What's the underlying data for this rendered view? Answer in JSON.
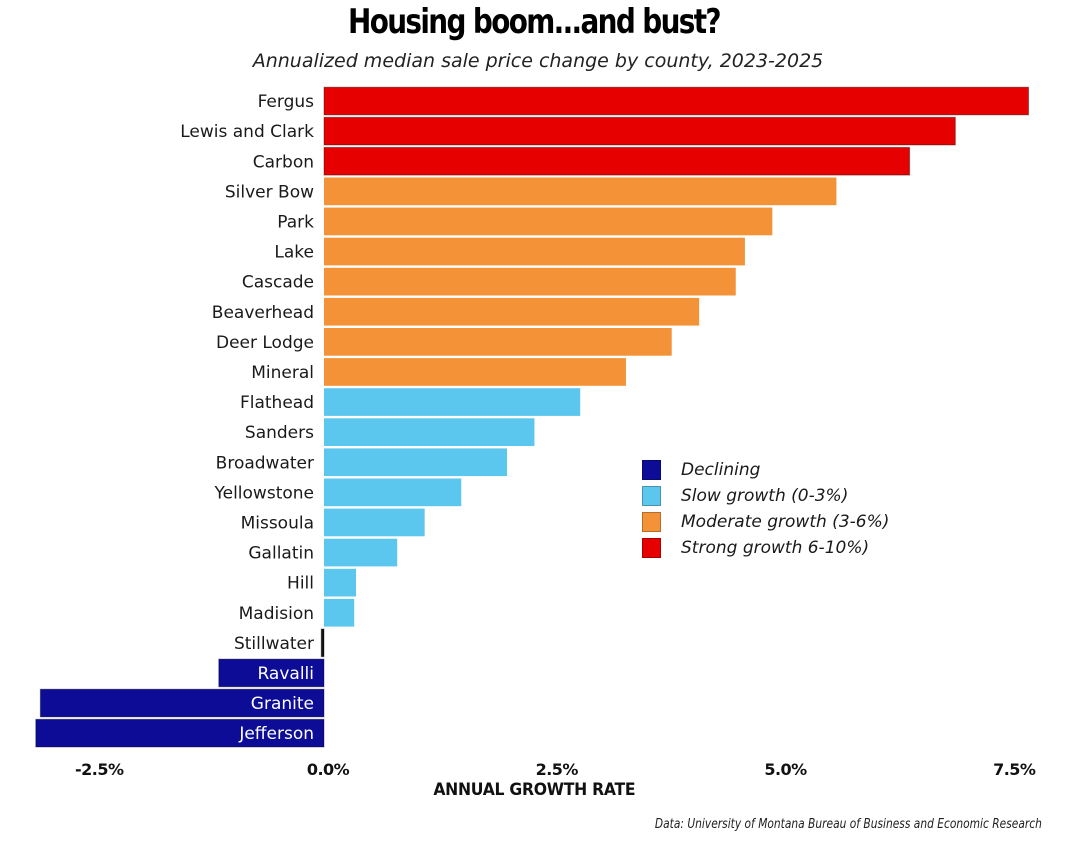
{
  "chart_data": {
    "type": "bar",
    "orientation": "horizontal",
    "title": "Housing boom...and bust?",
    "subtitle": "Annualized median sale price change by county, 2023-2025",
    "xlabel": "ANNUAL GROWTH RATE",
    "ylabel": "",
    "source": "Data: University of Montana Bureau of Business and Economic Research",
    "xlim": [
      -3.2,
      7.75
    ],
    "x_ticks": [
      -2.5,
      0.0,
      2.5,
      5.0,
      7.5
    ],
    "x_tick_labels": [
      "-2.5%",
      "0.0%",
      "2.5%",
      "5.0%",
      "7.5%"
    ],
    "grid": false,
    "legend_position": "center-right",
    "legend": [
      {
        "key": "declining",
        "label": "Declining",
        "color": "#0c0c96"
      },
      {
        "key": "slow",
        "label": "Slow growth (0-3%)",
        "color": "#5bc6ee"
      },
      {
        "key": "moderate",
        "label": "Moderate growth (3-6%)",
        "color": "#f39237"
      },
      {
        "key": "strong",
        "label": "Strong growth 6-10%)",
        "color": "#e60000"
      }
    ],
    "categories": [
      "Fergus",
      "Lewis and Clark",
      "Carbon",
      "Silver Bow",
      "Park",
      "Lake",
      "Cascade",
      "Beaverhead",
      "Deer Lodge",
      "Mineral",
      "Flathead",
      "Sanders",
      "Broadwater",
      "Yellowstone",
      "Missoula",
      "Gallatin",
      "Hill",
      "Madision",
      "Stillwater",
      "Ravalli",
      "Granite",
      "Jefferson"
    ],
    "values": [
      7.7,
      6.9,
      6.4,
      5.6,
      4.9,
      4.6,
      4.5,
      4.1,
      3.8,
      3.3,
      2.8,
      2.3,
      2.0,
      1.5,
      1.1,
      0.8,
      0.35,
      0.33,
      -0.03,
      -1.15,
      -3.1,
      -3.15
    ],
    "groups": [
      "strong",
      "strong",
      "strong",
      "moderate",
      "moderate",
      "moderate",
      "moderate",
      "moderate",
      "moderate",
      "moderate",
      "slow",
      "slow",
      "slow",
      "slow",
      "slow",
      "slow",
      "slow",
      "slow",
      "declining",
      "declining",
      "declining",
      "declining"
    ]
  }
}
